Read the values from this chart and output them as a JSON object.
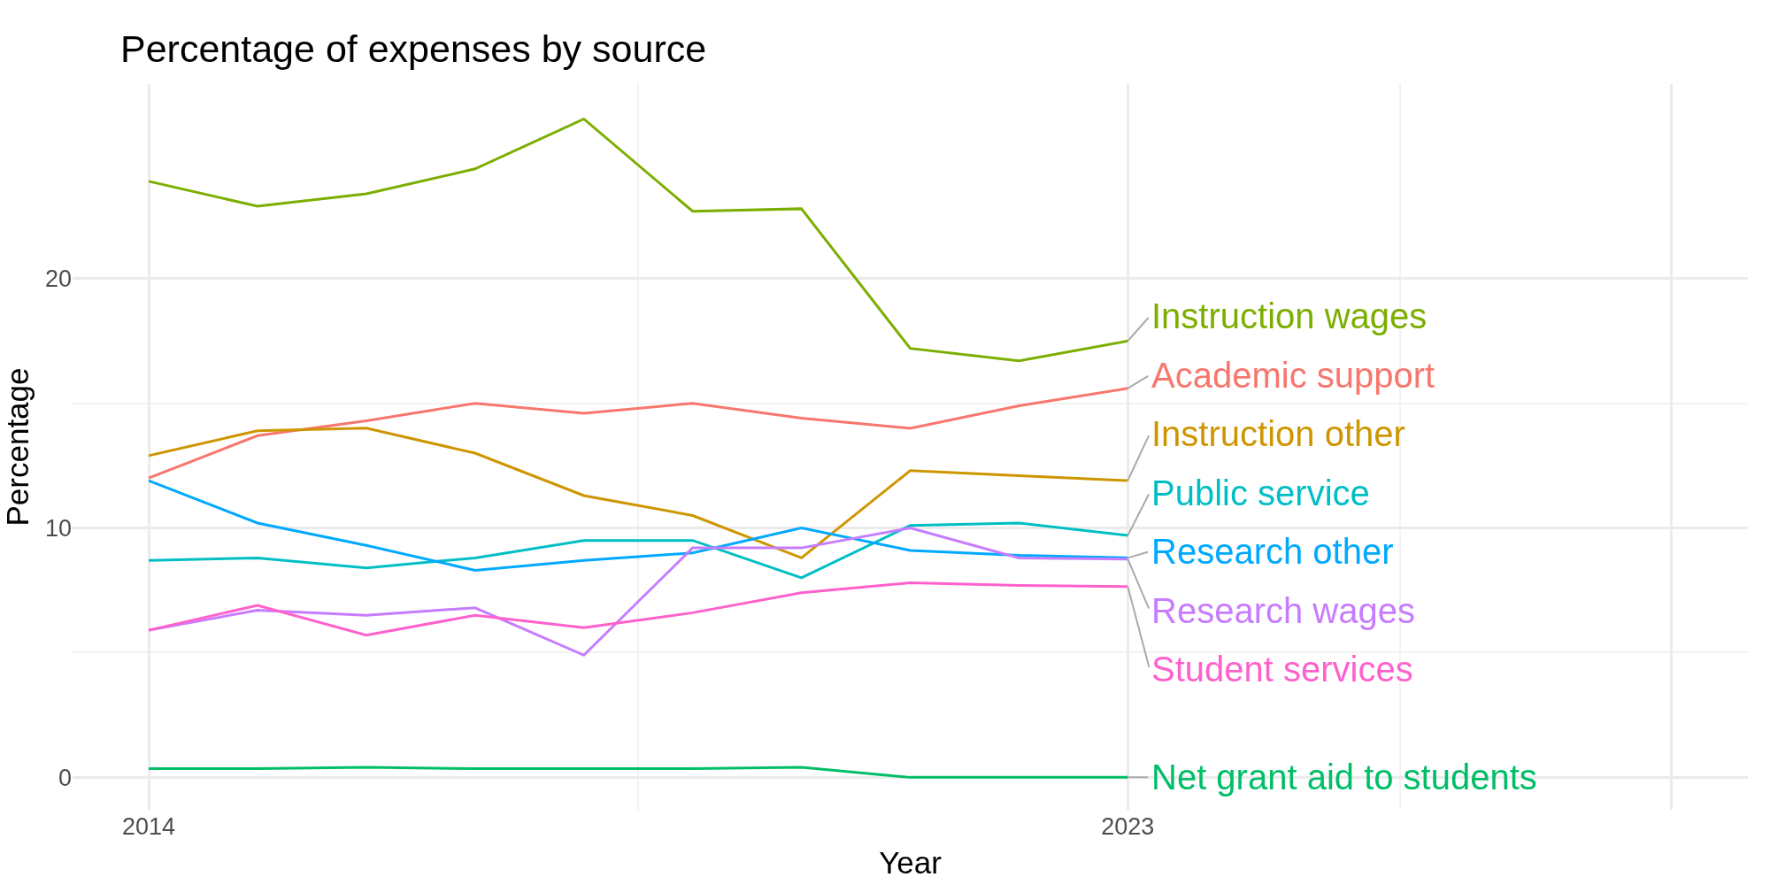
{
  "chart_data": {
    "type": "line",
    "title": "Percentage of expenses by source",
    "xlabel": "Year",
    "ylabel": "Percentage",
    "x": [
      2014,
      2015,
      2016,
      2017,
      2018,
      2019,
      2020,
      2021,
      2022,
      2023
    ],
    "series": [
      {
        "name": "Academic support",
        "color": "#f8766d",
        "values": [
          12.0,
          13.7,
          14.3,
          15.0,
          14.6,
          15.0,
          14.4,
          14.0,
          14.9,
          15.6
        ]
      },
      {
        "name": "Instruction other",
        "color": "#cd9600",
        "values": [
          12.9,
          13.9,
          14.0,
          13.0,
          11.3,
          10.5,
          8.8,
          12.3,
          12.1,
          11.9
        ]
      },
      {
        "name": "Instruction wages",
        "color": "#7cae00",
        "values": [
          23.9,
          22.9,
          23.4,
          24.4,
          26.4,
          22.7,
          22.8,
          17.2,
          16.7,
          17.5
        ]
      },
      {
        "name": "Net grant aid to students",
        "color": "#00be67",
        "values": [
          0.35,
          0.35,
          0.4,
          0.35,
          0.35,
          0.35,
          0.4,
          0.0,
          0.0,
          0.0
        ]
      },
      {
        "name": "Public service",
        "color": "#00bfc4",
        "values": [
          8.7,
          8.8,
          8.4,
          8.8,
          9.5,
          9.5,
          8.0,
          10.1,
          10.2,
          9.7
        ]
      },
      {
        "name": "Research other",
        "color": "#00a9ff",
        "values": [
          11.9,
          10.2,
          9.3,
          8.3,
          8.7,
          9.0,
          10.0,
          9.1,
          8.9,
          8.8
        ]
      },
      {
        "name": "Research wages",
        "color": "#c77cff",
        "values": [
          5.9,
          6.7,
          6.5,
          6.8,
          4.9,
          9.2,
          9.2,
          10.0,
          8.8,
          8.75
        ]
      },
      {
        "name": "Student services",
        "color": "#ff61cc",
        "values": [
          5.9,
          6.9,
          5.7,
          6.5,
          6.0,
          6.6,
          7.4,
          7.8,
          7.7,
          7.65
        ]
      }
    ],
    "xlim": [
      2013.3,
      2028.7
    ],
    "xticks": [
      2014,
      2023,
      {
        "value": 2028,
        "label": null
      }
    ],
    "ylim": [
      -1.3,
      27.8
    ],
    "yticks": [
      0,
      10,
      20
    ],
    "grid": true,
    "legend": false,
    "marker": "none",
    "line_style": "solid"
  }
}
